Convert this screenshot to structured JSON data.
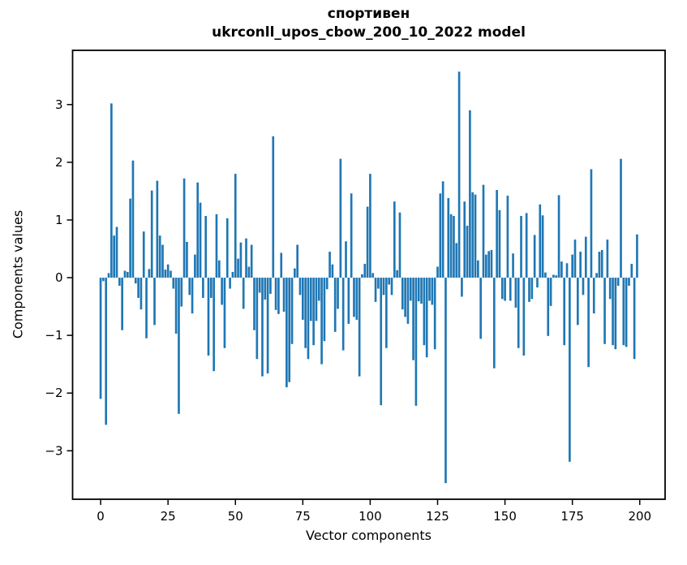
{
  "figure": {
    "title_line1": "спортивен",
    "title_line2": "ukrconll_upos_cbow_200_10_2022 model",
    "xlabel": "Vector components",
    "ylabel": "Components values"
  },
  "chart_data": {
    "type": "bar",
    "title": "спортивен",
    "subtitle": "ukrconll_upos_cbow_200_10_2022 model",
    "xlabel": "Vector components",
    "ylabel": "Components values",
    "bar_color": "#1f77b4",
    "spine_color": "#000000",
    "grid": false,
    "legend": null,
    "n_bars": 200,
    "x_ticks": [
      0,
      25,
      50,
      75,
      100,
      125,
      150,
      175,
      200
    ],
    "x_tick_labels": [
      "0",
      "25",
      "50",
      "75",
      "100",
      "125",
      "150",
      "175",
      "200"
    ],
    "y_ticks": [
      3,
      2,
      1,
      0,
      -1,
      -2,
      -3
    ],
    "y_tick_labels": [
      "3",
      "2",
      "1",
      "0",
      "−1",
      "−2",
      "−3"
    ],
    "xlim": [
      -10.4,
      209.4
    ],
    "ylim": [
      -3.84,
      3.94
    ],
    "values": [
      -2.1,
      -0.06,
      -2.55,
      0.08,
      3.02,
      0.73,
      0.88,
      -0.14,
      -0.91,
      0.12,
      0.1,
      1.37,
      2.03,
      -0.1,
      -0.35,
      -0.55,
      0.8,
      -1.05,
      0.15,
      1.51,
      -0.82,
      1.68,
      0.73,
      0.57,
      0.14,
      0.23,
      0.12,
      -0.19,
      -0.97,
      -2.36,
      -0.5,
      1.72,
      0.62,
      -0.3,
      -0.62,
      0.4,
      1.65,
      1.3,
      -0.35,
      1.07,
      -1.35,
      -0.35,
      -1.62,
      1.1,
      0.3,
      -0.47,
      -1.22,
      1.03,
      -0.19,
      0.1,
      1.8,
      0.33,
      0.61,
      -0.54,
      0.68,
      0.19,
      0.57,
      -0.91,
      -1.41,
      -0.26,
      -1.71,
      -0.38,
      -1.66,
      -0.28,
      2.45,
      -0.56,
      -0.63,
      0.43,
      -0.59,
      -1.9,
      -1.81,
      -1.15,
      0.16,
      0.57,
      -0.3,
      -0.73,
      -1.22,
      -1.41,
      -0.75,
      -1.17,
      -0.75,
      -0.4,
      -1.5,
      -1.1,
      -0.2,
      0.45,
      0.23,
      -0.94,
      -0.54,
      2.06,
      -1.26,
      0.63,
      -0.8,
      1.46,
      -0.68,
      -0.73,
      -1.71,
      0.06,
      0.24,
      1.23,
      1.8,
      0.08,
      -0.42,
      -0.19,
      -2.21,
      -0.3,
      -1.22,
      -0.12,
      -0.3,
      1.32,
      0.13,
      1.13,
      -0.55,
      -0.68,
      -0.8,
      -0.4,
      -1.43,
      -2.22,
      -0.41,
      -0.45,
      -1.17,
      -1.38,
      -0.4,
      -0.47,
      -1.24,
      0.19,
      1.46,
      1.67,
      -3.56,
      1.38,
      1.1,
      1.07,
      0.6,
      3.57,
      -0.33,
      1.32,
      0.9,
      2.9,
      1.48,
      1.44,
      0.3,
      -1.06,
      1.61,
      0.4,
      0.46,
      0.48,
      -1.57,
      1.52,
      1.17,
      -0.37,
      -0.4,
      1.42,
      -0.4,
      0.42,
      -0.52,
      -1.22,
      1.07,
      -1.35,
      1.12,
      -0.42,
      -0.37,
      0.74,
      -0.17,
      1.27,
      1.08,
      0.09,
      -1.01,
      -0.49,
      0.05,
      0.04,
      1.43,
      0.28,
      -1.17,
      0.25,
      -3.19,
      0.4,
      0.66,
      -0.82,
      0.45,
      -0.3,
      0.71,
      -1.55,
      1.88,
      -0.62,
      0.08,
      0.45,
      0.48,
      -1.15,
      0.66,
      -0.37,
      -1.17,
      -1.24,
      -0.14,
      2.06,
      -1.17,
      -1.2,
      -0.14,
      0.24,
      -1.41,
      0.75
    ]
  }
}
